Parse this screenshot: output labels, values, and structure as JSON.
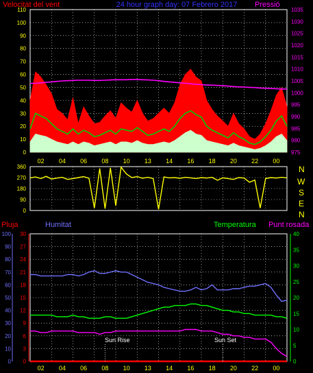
{
  "header": {
    "wind_label": "Velocitat del vent",
    "title": "24 hour graph day: 07 Febrero 2017",
    "pressure_label": "Pressió"
  },
  "compass": {
    "letters": [
      "N",
      "W",
      "S",
      "E",
      "N"
    ]
  },
  "lower_labels": {
    "rain": "Pluja",
    "humidity": "Humitat",
    "temperature": "Temperatura",
    "dewpoint": "Punt rosada",
    "sunrise": "Sun Rise",
    "sunset": "Sun Set"
  },
  "colors": {
    "wind_label": "#ff0000",
    "title": "#3333ff",
    "pressure": "#ff00ff",
    "gust": "#ff0000",
    "avg_wind": "#00cc00",
    "min_wind": "#ccffcc",
    "direction": "#ffff00",
    "humidity": "#7070ff",
    "temperature": "#00ff00",
    "dewpoint": "#ff00ff",
    "rain": "#ff0000",
    "compass": "#ffff00",
    "ticks": "#ffff00",
    "grid": "#ffffff"
  },
  "chart_data": [
    {
      "type": "area",
      "name": "wind_pressure",
      "x_ticks": [
        "02",
        "04",
        "06",
        "08",
        "10",
        "13",
        "14",
        "16",
        "18",
        "20",
        "22",
        "00"
      ],
      "x_hours": [
        0,
        0.5,
        1,
        1.5,
        2,
        2.5,
        3,
        3.5,
        4,
        4.5,
        5,
        5.5,
        6,
        6.5,
        7,
        7.5,
        8,
        8.5,
        9,
        9.5,
        10,
        10.5,
        11,
        11.5,
        12,
        12.5,
        13,
        13.5,
        14,
        14.5,
        15,
        15.5,
        16,
        16.5,
        17,
        17.5,
        18,
        18.5,
        19,
        19.5,
        20,
        20.5,
        21,
        21.5,
        22,
        22.5,
        23,
        23.5,
        24
      ],
      "y_left": {
        "ylim": [
          0,
          110
        ],
        "ticks": [
          0,
          10,
          20,
          30,
          40,
          50,
          60,
          70,
          80,
          90,
          100,
          110
        ]
      },
      "y_right": {
        "ylim": [
          975,
          1035
        ],
        "ticks": [
          975,
          980,
          985,
          990,
          995,
          1000,
          1005,
          1010,
          1015,
          1020,
          1025,
          1030,
          1035
        ],
        "unit": "pressure"
      },
      "series": [
        {
          "key": "gust",
          "values": [
            40,
            62,
            58,
            52,
            45,
            33,
            30,
            25,
            42,
            22,
            35,
            28,
            22,
            23,
            28,
            32,
            26,
            38,
            34,
            31,
            40,
            30,
            24,
            26,
            30,
            34,
            30,
            38,
            52,
            60,
            64,
            58,
            55,
            40,
            33,
            28,
            24,
            20,
            30,
            22,
            18,
            12,
            10,
            14,
            22,
            32,
            44,
            50,
            35
          ]
        },
        {
          "key": "avg_wind",
          "values": [
            18,
            30,
            28,
            26,
            22,
            18,
            16,
            14,
            18,
            14,
            17,
            15,
            12,
            13,
            15,
            17,
            14,
            18,
            17,
            16,
            19,
            16,
            13,
            14,
            16,
            18,
            16,
            20,
            26,
            30,
            32,
            29,
            27,
            20,
            17,
            15,
            13,
            11,
            15,
            12,
            10,
            7,
            6,
            8,
            12,
            17,
            24,
            28,
            20
          ]
        },
        {
          "key": "min_wind",
          "values": [
            8,
            14,
            13,
            12,
            10,
            8,
            7,
            6,
            8,
            6,
            8,
            7,
            5,
            6,
            7,
            8,
            6,
            8,
            8,
            7,
            9,
            7,
            6,
            6,
            7,
            8,
            7,
            9,
            12,
            15,
            17,
            14,
            13,
            9,
            8,
            7,
            6,
            5,
            7,
            5,
            4,
            3,
            2,
            3,
            5,
            8,
            12,
            14,
            9
          ]
        },
        {
          "key": "pressure",
          "values": [
            1004,
            1004,
            1004.2,
            1004.4,
            1004.6,
            1004.8,
            1005.0,
            1005.1,
            1005.2,
            1005.3,
            1005.3,
            1005.3,
            1005.2,
            1005.2,
            1005.3,
            1005.4,
            1005.5,
            1005.5,
            1005.5,
            1005.6,
            1005.6,
            1005.5,
            1005.4,
            1005.3,
            1005.1,
            1004.8,
            1004.6,
            1004.4,
            1004.2,
            1004.0,
            1003.8,
            1003.6,
            1003.4,
            1003.3,
            1003.2,
            1003.1,
            1003.0,
            1002.8,
            1002.6,
            1002.5,
            1002.4,
            1002.3,
            1002.2,
            1002.0,
            1001.9,
            1001.8,
            1001.7,
            1001.6,
            1001.6
          ]
        }
      ]
    },
    {
      "type": "line",
      "name": "wind_direction",
      "y_ticks": [
        0,
        90,
        180,
        270,
        360
      ],
      "ylim": [
        0,
        360
      ],
      "x_hours": [
        0,
        0.5,
        1,
        1.5,
        2,
        2.5,
        3,
        3.5,
        4,
        4.5,
        5,
        5.5,
        6,
        6.5,
        7,
        7.5,
        8,
        8.5,
        9,
        9.5,
        10,
        10.5,
        11,
        11.5,
        12,
        12.5,
        13,
        13.5,
        14,
        14.5,
        15,
        15.5,
        16,
        16.5,
        17,
        17.5,
        18,
        18.5,
        19,
        19.5,
        20,
        20.5,
        21,
        21.5,
        22,
        22.5,
        23,
        23.5,
        24
      ],
      "series": [
        {
          "key": "direction",
          "values": [
            268,
            275,
            262,
            280,
            258,
            266,
            272,
            255,
            262,
            270,
            278,
            265,
            20,
            345,
            15,
            350,
            40,
            355,
            300,
            270,
            278,
            265,
            272,
            262,
            10,
            275,
            268,
            270,
            264,
            272,
            268,
            262,
            270,
            266,
            272,
            248,
            268,
            262,
            255,
            270,
            266,
            232,
            250,
            20,
            262,
            270,
            266,
            272,
            268
          ]
        }
      ]
    },
    {
      "type": "line",
      "name": "humidity_temperature",
      "x_ticks": [
        "02",
        "04",
        "06",
        "08",
        "10",
        "13",
        "14",
        "16",
        "18",
        "20",
        "22",
        "00"
      ],
      "x_hours": [
        0,
        0.5,
        1,
        1.5,
        2,
        2.5,
        3,
        3.5,
        4,
        4.5,
        5,
        5.5,
        6,
        6.5,
        7,
        7.5,
        8,
        8.5,
        9,
        9.5,
        10,
        10.5,
        11,
        11.5,
        12,
        12.5,
        13,
        13.5,
        14,
        14.5,
        15,
        15.5,
        16,
        16.5,
        17,
        17.5,
        18,
        18.5,
        19,
        19.5,
        20,
        20.5,
        21,
        21.5,
        22,
        22.5,
        23,
        23.5,
        24
      ],
      "axes": {
        "humidity": {
          "ylim": [
            0,
            100
          ],
          "ticks": [
            0,
            10,
            20,
            30,
            40,
            50,
            60,
            70,
            80,
            90,
            100
          ]
        },
        "rain": {
          "ylim": [
            0,
            30
          ],
          "ticks": [
            0,
            3,
            6,
            9,
            12,
            15,
            18,
            21,
            24,
            27,
            30
          ]
        },
        "temperature": {
          "ylim": [
            0,
            40
          ],
          "ticks": [
            0,
            5,
            10,
            15,
            20,
            25,
            30,
            35,
            40
          ]
        }
      },
      "series": [
        {
          "key": "humidity",
          "axis": "humidity",
          "values": [
            68,
            68,
            67,
            67,
            67,
            67,
            67,
            68,
            68,
            67,
            68,
            70,
            71,
            69,
            69,
            70,
            71,
            70,
            70,
            68,
            66,
            64,
            62,
            61,
            60,
            58,
            57,
            56,
            55,
            55,
            56,
            58,
            56,
            57,
            60,
            56,
            56,
            56,
            57,
            57,
            58,
            59,
            59,
            60,
            61,
            58,
            52,
            47,
            48
          ]
        },
        {
          "key": "temperature",
          "axis": "temperature",
          "values": [
            14.5,
            14.5,
            14.5,
            14.5,
            14.5,
            14.0,
            14.0,
            14.0,
            14.5,
            14.0,
            14.0,
            13.5,
            13.5,
            13.5,
            14.0,
            14.0,
            13.5,
            13.5,
            13.5,
            14.0,
            14.5,
            15.0,
            15.5,
            16.0,
            16.5,
            17.0,
            17.0,
            17.5,
            17.5,
            17.5,
            18.0,
            18.0,
            17.5,
            17.5,
            17.0,
            16.5,
            16.0,
            16.0,
            15.5,
            15.5,
            15.0,
            15.0,
            14.5,
            14.5,
            14.5,
            14.5,
            14.0,
            14.0,
            13.5
          ]
        },
        {
          "key": "dewpoint",
          "axis": "temperature",
          "values": [
            9.5,
            9.5,
            9.0,
            9.0,
            9.5,
            9.5,
            9.5,
            9.5,
            9.5,
            9.0,
            9.0,
            9.0,
            9.0,
            8.5,
            9.0,
            9.0,
            9.5,
            9.5,
            9.5,
            9.5,
            9.5,
            9.5,
            9.5,
            9.5,
            9.5,
            9.5,
            9.5,
            9.5,
            9.5,
            10.0,
            10.0,
            10.0,
            9.5,
            9.5,
            9.5,
            9.0,
            8.5,
            8.5,
            8.0,
            8.0,
            7.5,
            7.5,
            7.0,
            7.0,
            7.0,
            6.0,
            4.0,
            2.5,
            1.5
          ]
        },
        {
          "key": "rain",
          "axis": "rain",
          "values": [
            0,
            0,
            0,
            0,
            0,
            0,
            0,
            0,
            0,
            0,
            0,
            0,
            0,
            0,
            0,
            0,
            0,
            0,
            0,
            0,
            0,
            0,
            0,
            0,
            0,
            0,
            0,
            0,
            0,
            0,
            0,
            0,
            0,
            0,
            0,
            0,
            0,
            0,
            0,
            0,
            0,
            0,
            0,
            0,
            0,
            0,
            0,
            0,
            0
          ]
        }
      ],
      "sunrise_hour": 7,
      "sunset_hour": 18
    }
  ]
}
